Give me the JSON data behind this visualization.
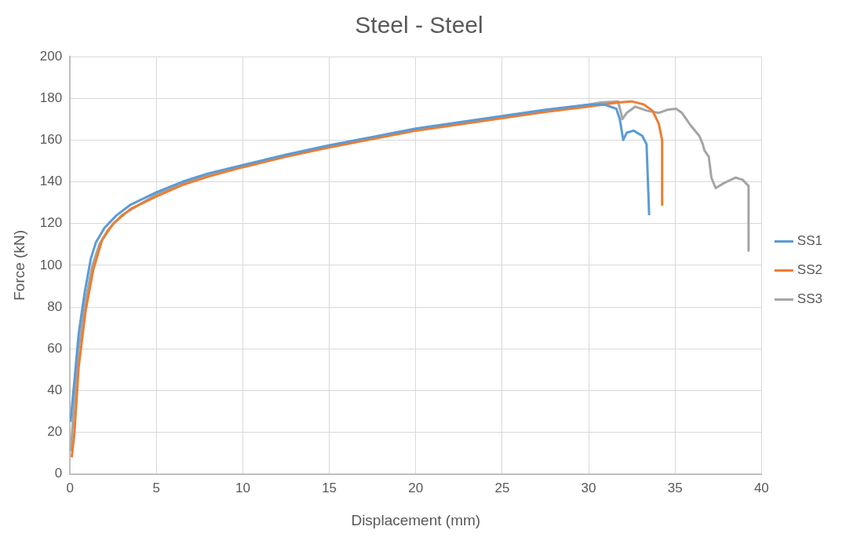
{
  "chart_data": {
    "type": "line",
    "title": "Steel - Steel",
    "xlabel": "Displacement (mm)",
    "ylabel": "Force (kN)",
    "xlim": [
      0,
      40
    ],
    "xticks": [
      0,
      5,
      10,
      15,
      20,
      25,
      30,
      35,
      40
    ],
    "ylim": [
      0,
      200
    ],
    "yticks": [
      0,
      20,
      40,
      60,
      80,
      100,
      120,
      140,
      160,
      180,
      200
    ],
    "grid": true,
    "legend": "right",
    "series": [
      {
        "name": "SS1",
        "color": "#5b9bd5",
        "x": [
          0.03,
          0.25,
          0.5,
          0.85,
          1.2,
          1.5,
          2,
          2.7,
          3.5,
          5,
          6.5,
          8,
          10,
          12.5,
          15,
          17.5,
          20,
          22.5,
          25,
          27.5,
          30,
          30.9,
          31.6,
          31.8,
          32,
          32.2,
          32.6,
          33.1,
          33.35,
          33.5
        ],
        "values": [
          25,
          44,
          67,
          87,
          103,
          111,
          118,
          124,
          129,
          135,
          140,
          144,
          148,
          153,
          157.5,
          161.5,
          165.5,
          168.5,
          171.5,
          174.5,
          177,
          177,
          175,
          170,
          160,
          163.5,
          164.5,
          162,
          158,
          124
        ]
      },
      {
        "name": "SS2",
        "color": "#ed7d31",
        "x": [
          0.1,
          0.25,
          0.5,
          0.9,
          1.35,
          1.85,
          2.5,
          3.5,
          5,
          6.5,
          8,
          10,
          12.5,
          15,
          17.5,
          20,
          22.5,
          25,
          27.5,
          30,
          31.7,
          32.5,
          33.2,
          33.7,
          34.05,
          34.25,
          34.25
        ],
        "values": [
          8,
          19,
          51,
          78,
          98,
          112,
          120,
          127,
          133,
          138.5,
          142.5,
          147,
          152,
          156.5,
          160.5,
          164.5,
          167.5,
          170.5,
          173.5,
          176,
          178,
          178.5,
          177,
          174,
          168,
          160,
          129
        ]
      },
      {
        "name": "SS3",
        "color": "#a5a5a5",
        "x": [
          0.05,
          0.25,
          0.5,
          0.9,
          1.3,
          1.7,
          2.2,
          3,
          4,
          5,
          6.5,
          8,
          10,
          12.5,
          15,
          17.5,
          20,
          22.5,
          25,
          27.5,
          30,
          30.7,
          31.7,
          31.9,
          31.95,
          32.2,
          32.7,
          33.4,
          34.05,
          34.55,
          35.05,
          35.4,
          35.9,
          36.4,
          36.6,
          36.7,
          36.95,
          37.1,
          37.35,
          37.85,
          38.5,
          38.9,
          39.25,
          39.25
        ],
        "values": [
          11,
          35,
          60,
          83,
          100,
          110,
          117,
          124,
          129,
          134,
          139.5,
          143.5,
          147.5,
          152.5,
          157,
          161,
          165,
          168,
          171,
          174,
          177,
          178,
          178.5,
          172,
          170,
          173,
          176,
          174,
          173,
          174.5,
          175,
          173,
          167,
          162,
          158,
          155,
          152,
          142,
          137,
          139.5,
          142,
          141,
          138,
          107
        ]
      }
    ]
  }
}
